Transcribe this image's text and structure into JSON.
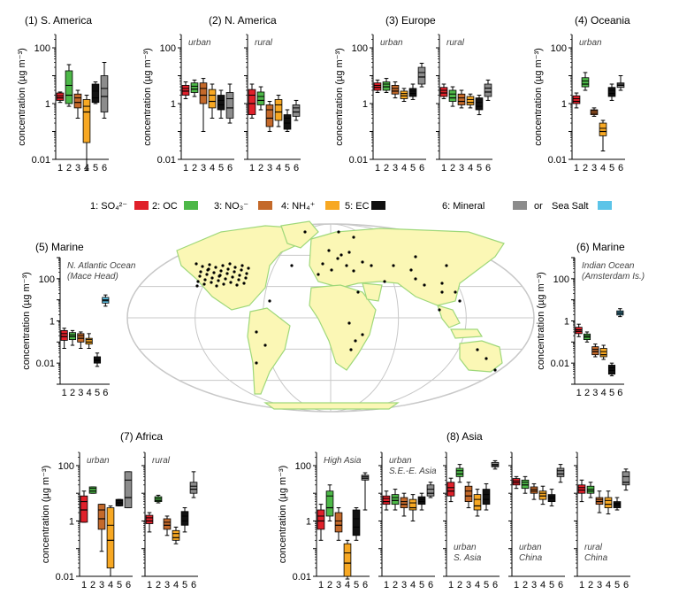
{
  "colors": {
    "so4": "#e0202a",
    "oc": "#4db848",
    "no3": "#c4692a",
    "nh4": "#f7a823",
    "ec": "#111111",
    "mineral": "#8c8c8c",
    "seasalt": "#5cc4e8",
    "land": "#fbf7b5",
    "coast": "#9fd87a",
    "grid": "#c8c8c8"
  },
  "legend": {
    "items": [
      {
        "label": "1: SO₄²⁻",
        "color_key": "so4"
      },
      {
        "label": "2: OC",
        "color_key": "oc"
      },
      {
        "label": "3: NO₃⁻",
        "color_key": "no3"
      },
      {
        "label": "4: NH₄⁺",
        "color_key": "nh4"
      },
      {
        "label": "5: EC",
        "color_key": "ec"
      },
      {
        "label": "6: Mineral",
        "color_key": "mineral"
      }
    ],
    "or_label": "or",
    "extra": {
      "label": "Sea Salt",
      "color_key": "seasalt"
    }
  },
  "axis": {
    "ylabel": "concentration (µg m⁻³)",
    "xticks": [
      "1",
      "2",
      "3",
      "4",
      "5",
      "6"
    ]
  },
  "chart_data": [
    {
      "type": "box",
      "title": "(1) S. America",
      "subtitle": "",
      "y_scale": "log",
      "ylim": [
        0.01,
        300
      ],
      "yticks": [
        0.01,
        1,
        100
      ],
      "boxes": [
        [
          1.3,
          1.6,
          1.9,
          2.4
        ],
        [
          1.0,
          2.0,
          4.5,
          15
        ],
        [
          0.7,
          1.1,
          1.6,
          2.2
        ],
        [
          0.04,
          0.5,
          0.8,
          1.4
        ],
        [
          1.1,
          1.6,
          2.8,
          5
        ],
        [
          0.5,
          1.8,
          3.5,
          10
        ]
      ],
      "whiskers": [
        [
          1.1,
          2.6
        ],
        [
          0.8,
          25
        ],
        [
          0.3,
          3
        ],
        [
          0.004,
          2
        ],
        [
          1,
          6
        ],
        [
          0.3,
          30
        ]
      ]
    },
    {
      "type": "box",
      "title": "(2) N. America",
      "subtitle": "urban",
      "y_scale": "log",
      "ylim": [
        0.01,
        300
      ],
      "yticks": [
        0.01,
        1,
        100
      ],
      "boxes": [
        [
          2.0,
          2.8,
          3.5,
          4.5
        ],
        [
          2.5,
          3.3,
          4.2,
          5.5
        ],
        [
          1.0,
          2.0,
          3.5,
          5.5
        ],
        [
          0.7,
          1.2,
          2.0,
          3.2
        ],
        [
          0.6,
          0.9,
          1.3,
          2.0
        ],
        [
          0.3,
          0.7,
          1.5,
          2.5
        ]
      ],
      "whiskers": [
        [
          1.5,
          6
        ],
        [
          1.8,
          7
        ],
        [
          0.1,
          8
        ],
        [
          0.3,
          5
        ],
        [
          0.3,
          3
        ],
        [
          0.2,
          5
        ]
      ]
    },
    {
      "type": "box",
      "title": "",
      "subtitle": "rural",
      "y_scale": "log",
      "ylim": [
        0.01,
        300
      ],
      "yticks": [
        0.01,
        1,
        100
      ],
      "boxes": [
        [
          0.4,
          1.0,
          2.0,
          3.2
        ],
        [
          0.9,
          1.3,
          1.8,
          2.6
        ],
        [
          0.15,
          0.3,
          0.6,
          0.9
        ],
        [
          0.25,
          0.5,
          0.9,
          1.4
        ],
        [
          0.12,
          0.2,
          0.3,
          0.4
        ],
        [
          0.35,
          0.5,
          0.7,
          0.9
        ]
      ],
      "whiskers": [
        [
          0.3,
          5
        ],
        [
          0.6,
          4
        ],
        [
          0.1,
          1.2
        ],
        [
          0.15,
          2
        ],
        [
          0.1,
          0.6
        ],
        [
          0.25,
          1.3
        ]
      ]
    },
    {
      "type": "box",
      "title": "(3) Europe",
      "subtitle": "urban",
      "y_scale": "log",
      "ylim": [
        0.01,
        300
      ],
      "yticks": [
        0.01,
        1,
        100
      ],
      "boxes": [
        [
          3.0,
          3.8,
          4.5,
          5.5
        ],
        [
          3.0,
          4.0,
          5.0,
          6.0
        ],
        [
          2.2,
          2.8,
          3.5,
          4.5
        ],
        [
          1.5,
          1.9,
          2.3,
          2.8
        ],
        [
          1.8,
          2.3,
          2.8,
          3.5
        ],
        [
          5,
          9,
          13,
          20
        ]
      ],
      "whiskers": [
        [
          2.5,
          7
        ],
        [
          2.5,
          8
        ],
        [
          1.6,
          6
        ],
        [
          1.2,
          3.5
        ],
        [
          1.4,
          5
        ],
        [
          4,
          28
        ]
      ]
    },
    {
      "type": "box",
      "title": "",
      "subtitle": "rural",
      "y_scale": "log",
      "ylim": [
        0.01,
        300
      ],
      "yticks": [
        0.01,
        1,
        100
      ],
      "boxes": [
        [
          1.8,
          2.4,
          3.0,
          3.8
        ],
        [
          1.2,
          1.6,
          2.2,
          3.0
        ],
        [
          0.9,
          1.2,
          1.6,
          2.2
        ],
        [
          0.9,
          1.1,
          1.4,
          1.8
        ],
        [
          0.6,
          0.8,
          1.1,
          1.6
        ],
        [
          1.8,
          2.6,
          3.6,
          5
        ]
      ],
      "whiskers": [
        [
          1.5,
          5
        ],
        [
          0.8,
          4
        ],
        [
          0.7,
          3
        ],
        [
          0.7,
          2.2
        ],
        [
          0.4,
          2
        ],
        [
          1.3,
          7
        ]
      ]
    },
    {
      "type": "box",
      "title": "(4) Oceania",
      "subtitle": "urban",
      "y_scale": "log",
      "ylim": [
        0.01,
        300
      ],
      "yticks": [
        0.01,
        1,
        100
      ],
      "boxes": [
        [
          1.0,
          1.2,
          1.5,
          1.9
        ],
        [
          4.0,
          5.0,
          6.5,
          8.5
        ],
        [
          0.4,
          0.45,
          0.55,
          0.6
        ],
        [
          0.07,
          0.1,
          0.13,
          0.2
        ],
        [
          1.8,
          2.3,
          3.0,
          3.8
        ],
        [
          3.8,
          4.5,
          5.0,
          5.5
        ]
      ],
      "whiskers": [
        [
          0.7,
          2.4
        ],
        [
          3.0,
          13
        ],
        [
          0.35,
          0.7
        ],
        [
          0.02,
          0.25
        ],
        [
          1.3,
          5
        ],
        [
          3.0,
          10
        ]
      ]
    },
    {
      "type": "box",
      "title": "(5) Marine",
      "subtitle": "N. Atlantic Ocean|(Mace Head)",
      "y_scale": "log",
      "ylim": [
        0.001,
        1000
      ],
      "yticks": [
        0.01,
        1,
        100
      ],
      "boxes": [
        [
          0.12,
          0.18,
          0.25,
          0.35
        ],
        [
          0.13,
          0.18,
          0.22,
          0.28
        ],
        [
          0.1,
          0.15,
          0.2,
          0.25
        ],
        [
          0.08,
          0.1,
          0.13,
          0.15
        ],
        [
          0.01,
          0.013,
          0.015,
          0.02
        ],
        [
          7,
          9,
          10,
          13
        ]
      ],
      "whiskers": [
        [
          0.05,
          0.45
        ],
        [
          0.07,
          0.35
        ],
        [
          0.05,
          0.3
        ],
        [
          0.05,
          0.25
        ],
        [
          0.007,
          0.03
        ],
        [
          5,
          17
        ]
      ]
    },
    {
      "type": "box",
      "title": "(6) Marine",
      "subtitle": "Indian Ocean|(Amsterdam Is.)",
      "y_scale": "log",
      "ylim": [
        0.001,
        1000
      ],
      "yticks": [
        0.01,
        1,
        100
      ],
      "boxes": [
        [
          0.25,
          0.32,
          0.38,
          0.5
        ],
        [
          0.13,
          0.17,
          0.2,
          0.24
        ],
        [
          0.025,
          0.035,
          0.045,
          0.06
        ],
        [
          0.02,
          0.025,
          0.035,
          0.05
        ],
        [
          0.003,
          0.0045,
          0.006,
          0.008
        ],
        [
          1.9,
          2.2,
          2.6,
          3.0
        ]
      ],
      "whiskers": [
        [
          0.18,
          0.7
        ],
        [
          0.1,
          0.3
        ],
        [
          0.02,
          0.08
        ],
        [
          0.015,
          0.07
        ],
        [
          0.0025,
          0.01
        ],
        [
          1.6,
          3.8
        ]
      ]
    },
    {
      "type": "box",
      "title": "(7) Africa",
      "subtitle": "urban",
      "y_scale": "log",
      "ylim": [
        0.01,
        300
      ],
      "yticks": [
        0.01,
        1,
        100
      ],
      "boxes": [
        [
          0.9,
          2.5,
          5.0,
          8.0
        ],
        [
          10,
          12,
          15,
          17
        ],
        [
          0.5,
          1.2,
          2.5,
          4.0
        ],
        [
          0.02,
          0.2,
          0.7,
          3.0
        ],
        [
          3.5,
          4.5,
          5.5,
          6.0
        ],
        [
          3,
          7,
          30,
          60
        ]
      ],
      "whiskers": [
        [
          0.9,
          12
        ],
        [
          10,
          17
        ],
        [
          0.08,
          4
        ],
        [
          0.01,
          3.5
        ],
        [
          3.5,
          6
        ],
        [
          3,
          60
        ]
      ]
    },
    {
      "type": "box",
      "title": "",
      "subtitle": "rural",
      "y_scale": "log",
      "ylim": [
        0.01,
        300
      ],
      "yticks": [
        0.01,
        1,
        100
      ],
      "boxes": [
        [
          0.8,
          1.0,
          1.3,
          1.6
        ],
        [
          5.0,
          5.5,
          6.5,
          7.5
        ],
        [
          0.5,
          0.7,
          0.9,
          1.2
        ],
        [
          0.2,
          0.25,
          0.35,
          0.45
        ],
        [
          0.7,
          1.0,
          1.5,
          2.2
        ],
        [
          10,
          14,
          18,
          25
        ]
      ],
      "whiskers": [
        [
          0.4,
          2
        ],
        [
          4.5,
          8.5
        ],
        [
          0.3,
          1.5
        ],
        [
          0.15,
          0.6
        ],
        [
          0.4,
          3
        ],
        [
          7,
          60
        ]
      ]
    },
    {
      "type": "box",
      "title": "(8) Asia",
      "subtitle": "High Asia",
      "y_scale": "log",
      "ylim": [
        0.01,
        300
      ],
      "yticks": [
        0.01,
        1,
        100
      ],
      "boxes": [
        [
          0.5,
          1.0,
          1.5,
          2.5
        ],
        [
          1.5,
          3,
          8,
          12
        ],
        [
          0.4,
          0.7,
          1.0,
          2.0
        ],
        [
          0.01,
          0.03,
          0.07,
          0.15
        ],
        [
          0.3,
          0.6,
          1.2,
          2.5
        ],
        [
          30,
          35,
          40,
          45
        ]
      ],
      "whiskers": [
        [
          0.2,
          4
        ],
        [
          1,
          20
        ],
        [
          0.2,
          3
        ],
        [
          0.008,
          0.2
        ],
        [
          0.2,
          3
        ],
        [
          2.5,
          55
        ]
      ]
    },
    {
      "type": "box",
      "title": "",
      "subtitle": "urban|S.E.-E. Asia",
      "y_scale": "log",
      "ylim": [
        0.01,
        300
      ],
      "yticks": [
        0.01,
        1,
        100
      ],
      "boxes": [
        [
          4,
          5,
          6.5,
          8
        ],
        [
          4,
          5.5,
          7,
          9
        ],
        [
          3,
          4,
          5,
          7
        ],
        [
          2.5,
          3,
          4.5,
          6
        ],
        [
          4,
          5,
          6,
          7.5
        ],
        [
          8,
          10,
          14,
          20
        ]
      ],
      "whiskers": [
        [
          2.5,
          12
        ],
        [
          2.5,
          14
        ],
        [
          1.5,
          10
        ],
        [
          1,
          9
        ],
        [
          2.5,
          10
        ],
        [
          7,
          25
        ]
      ]
    },
    {
      "type": "box",
      "title": "",
      "subtitle": "urban|S. Asia",
      "y_scale": "log",
      "ylim": [
        0.01,
        300
      ],
      "yticks": [
        0.01,
        1,
        100
      ],
      "boxes": [
        [
          8,
          12,
          16,
          25
        ],
        [
          40,
          50,
          65,
          80
        ],
        [
          5,
          8,
          12,
          18
        ],
        [
          2.5,
          3.5,
          6,
          9
        ],
        [
          4,
          6,
          9,
          14
        ],
        [
          90,
          100,
          110,
          130
        ]
      ],
      "whiskers": [
        [
          5,
          35
        ],
        [
          25,
          110
        ],
        [
          3,
          25
        ],
        [
          1.5,
          14
        ],
        [
          2.5,
          22
        ],
        [
          75,
          150
        ]
      ]
    },
    {
      "type": "box",
      "title": "",
      "subtitle": "urban|China",
      "y_scale": "log",
      "ylim": [
        0.01,
        300
      ],
      "yticks": [
        0.01,
        1,
        100
      ],
      "boxes": [
        [
          20,
          24,
          28,
          34
        ],
        [
          15,
          20,
          25,
          30
        ],
        [
          10,
          12,
          14,
          17
        ],
        [
          6,
          8,
          10,
          12
        ],
        [
          5,
          6.5,
          7.5,
          9
        ],
        [
          40,
          50,
          65,
          80
        ]
      ],
      "whiskers": [
        [
          15,
          40
        ],
        [
          10,
          40
        ],
        [
          6,
          22
        ],
        [
          4,
          18
        ],
        [
          3.5,
          14
        ],
        [
          25,
          110
        ]
      ]
    },
    {
      "type": "box",
      "title": "",
      "subtitle": "rural|China",
      "y_scale": "log",
      "ylim": [
        0.01,
        300
      ],
      "yticks": [
        0.01,
        1,
        100
      ],
      "boxes": [
        [
          10,
          13,
          16,
          20
        ],
        [
          10,
          12,
          14,
          18
        ],
        [
          4,
          5,
          6,
          7
        ],
        [
          3,
          4,
          5.5,
          7
        ],
        [
          3,
          3.8,
          4.3,
          5
        ],
        [
          20,
          25,
          40,
          60
        ]
      ],
      "whiskers": [
        [
          5,
          30
        ],
        [
          7,
          25
        ],
        [
          2,
          12
        ],
        [
          1.8,
          12
        ],
        [
          2.5,
          7
        ],
        [
          13,
          75
        ]
      ]
    }
  ]
}
